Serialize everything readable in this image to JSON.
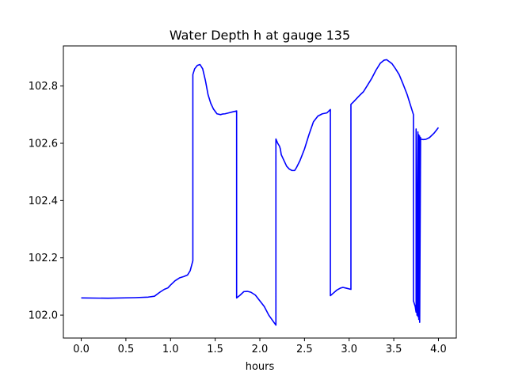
{
  "chart_data": {
    "type": "line",
    "title": "Water Depth h at gauge 135",
    "xlabel": "hours",
    "ylabel": "",
    "xlim": [
      -0.2,
      4.2
    ],
    "ylim": [
      101.92,
      102.94
    ],
    "grid": false,
    "x_ticks": [
      0.0,
      0.5,
      1.0,
      1.5,
      2.0,
      2.5,
      3.0,
      3.5,
      4.0
    ],
    "x_tick_labels": [
      "0.0",
      "0.5",
      "1.0",
      "1.5",
      "2.0",
      "2.5",
      "3.0",
      "3.5",
      "4.0"
    ],
    "y_ticks": [
      102.0,
      102.2,
      102.4,
      102.6,
      102.8
    ],
    "y_tick_labels": [
      "102.0",
      "102.2",
      "102.4",
      "102.6",
      "102.8"
    ],
    "series": [
      {
        "color": "#0000ff",
        "x": [
          0.0,
          0.3,
          0.6,
          0.75,
          0.82,
          0.88,
          0.93,
          0.97,
          1.0,
          1.05,
          1.1,
          1.15,
          1.19,
          1.22,
          1.25,
          1.25,
          1.27,
          1.3,
          1.33,
          1.36,
          1.39,
          1.42,
          1.45,
          1.48,
          1.52,
          1.56,
          1.58,
          1.61,
          1.65,
          1.7,
          1.74,
          1.74,
          1.78,
          1.82,
          1.86,
          1.9,
          1.95,
          2.0,
          2.05,
          2.1,
          2.18,
          2.18,
          2.2,
          2.22,
          2.23,
          2.24,
          2.27,
          2.3,
          2.33,
          2.36,
          2.39,
          2.41,
          2.45,
          2.5,
          2.55,
          2.6,
          2.65,
          2.7,
          2.75,
          2.79,
          2.79,
          2.82,
          2.86,
          2.9,
          2.93,
          2.97,
          3.02,
          3.02,
          3.05,
          3.08,
          3.12,
          3.16,
          3.2,
          3.25,
          3.3,
          3.35,
          3.39,
          3.42,
          3.45,
          3.48,
          3.52,
          3.56,
          3.6,
          3.65,
          3.69,
          3.72,
          3.72,
          3.74,
          3.75,
          3.75,
          3.76,
          3.77,
          3.77,
          3.78,
          3.78,
          3.79,
          3.79,
          3.8,
          3.8,
          3.81,
          3.83,
          3.86,
          3.9,
          3.95,
          4.0
        ],
        "y": [
          102.06,
          102.059,
          102.061,
          102.063,
          102.066,
          102.08,
          102.09,
          102.095,
          102.105,
          102.12,
          102.13,
          102.135,
          102.14,
          102.155,
          102.19,
          102.84,
          102.86,
          102.872,
          102.875,
          102.86,
          102.82,
          102.77,
          102.74,
          102.72,
          102.703,
          102.7,
          102.702,
          102.703,
          102.706,
          102.71,
          102.713,
          102.06,
          102.07,
          102.082,
          102.083,
          102.08,
          102.07,
          102.05,
          102.03,
          102.0,
          101.965,
          102.615,
          102.6,
          102.59,
          102.58,
          102.56,
          102.54,
          102.52,
          102.51,
          102.505,
          102.505,
          102.515,
          102.54,
          102.58,
          102.63,
          102.675,
          102.695,
          102.703,
          102.706,
          102.718,
          102.068,
          102.076,
          102.087,
          102.094,
          102.097,
          102.094,
          102.09,
          102.736,
          102.745,
          102.755,
          102.768,
          102.78,
          102.8,
          102.825,
          102.855,
          102.88,
          102.89,
          102.892,
          102.885,
          102.878,
          102.86,
          102.84,
          102.81,
          102.77,
          102.73,
          102.7,
          102.05,
          102.03,
          102.01,
          102.65,
          102.0,
          102.64,
          101.995,
          102.63,
          101.985,
          102.625,
          101.975,
          102.62,
          102.615,
          102.614,
          102.613,
          102.614,
          102.62,
          102.635,
          102.655
        ]
      }
    ]
  }
}
